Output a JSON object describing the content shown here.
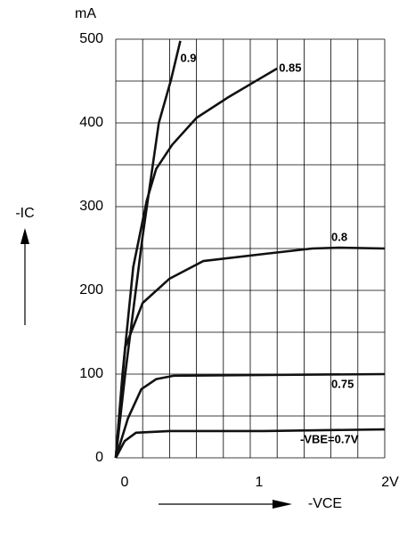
{
  "chart_data": {
    "type": "line",
    "y_unit": "mA",
    "y_label": "-IC",
    "x_label": "-VCE",
    "xlim": [
      0,
      2
    ],
    "ylim": [
      0,
      500
    ],
    "xticks": [
      0,
      1,
      {
        "value": 2,
        "label": "2V"
      }
    ],
    "yticks": [
      0,
      100,
      200,
      300,
      400,
      500
    ],
    "xgrid": [
      0,
      0.2,
      0.4,
      0.6,
      0.8,
      1,
      1.2,
      1.4,
      1.6,
      1.8,
      2
    ],
    "ygrid": [
      0,
      50,
      100,
      150,
      200,
      250,
      300,
      350,
      400,
      450,
      500
    ],
    "series": [
      {
        "name": "-VBE=0.7V",
        "color": "#111111",
        "x": [
          0,
          0.066,
          0.15,
          0.4,
          1.1,
          2
        ],
        "values": [
          0,
          20,
          30,
          32,
          32,
          34
        ]
      },
      {
        "name": "0.75",
        "color": "#111111",
        "x": [
          0,
          0.09,
          0.19,
          0.3,
          0.43,
          1.13,
          2
        ],
        "values": [
          0,
          47,
          82,
          94,
          98,
          99,
          100
        ]
      },
      {
        "name": "0.8",
        "color": "#111111",
        "x": [
          0,
          0.07,
          0.2,
          0.4,
          0.65,
          1.13,
          1.46,
          1.66,
          2
        ],
        "values": [
          0,
          132,
          185,
          214,
          235,
          244,
          250,
          251,
          250
        ]
      },
      {
        "name": "0.85",
        "color": "#111111",
        "x": [
          0,
          0.05,
          0.13,
          0.23,
          0.3,
          0.42,
          0.6,
          0.83,
          1.03,
          1.2
        ],
        "values": [
          0,
          100,
          228,
          307,
          345,
          374,
          406,
          430,
          449,
          465
        ]
      },
      {
        "name": "0.9",
        "color": "#111111",
        "x": [
          0,
          0.07,
          0.2,
          0.32,
          0.41,
          0.48
        ],
        "values": [
          0,
          100,
          265,
          400,
          451,
          498
        ]
      }
    ]
  }
}
